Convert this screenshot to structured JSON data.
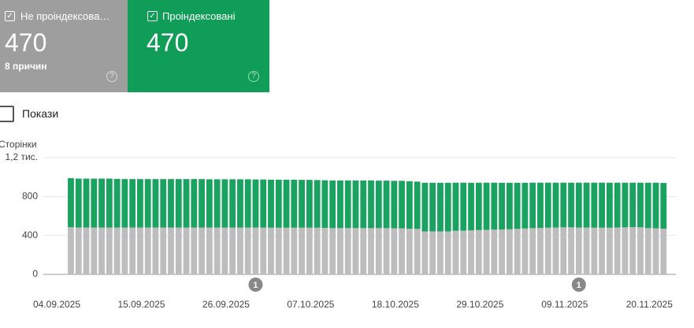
{
  "cards": [
    {
      "label": "Не проіндексова…",
      "value": "470",
      "note": "8 причин"
    },
    {
      "label": "Проіндексовані",
      "value": "470"
    }
  ],
  "toggle": "Покази",
  "chart_data": {
    "type": "stacked-bar",
    "y_label": "Сторінки",
    "categories": [
      "04.09.2025",
      null,
      null,
      null,
      null,
      null,
      null,
      null,
      null,
      null,
      null,
      "15.09.2025",
      null,
      null,
      null,
      null,
      null,
      null,
      null,
      null,
      null,
      null,
      "26.09.2025",
      null,
      null,
      null,
      null,
      null,
      null,
      null,
      null,
      null,
      null,
      "07.10.2025",
      null,
      null,
      null,
      null,
      null,
      null,
      null,
      null,
      null,
      null,
      "18.10.2025",
      null,
      null,
      null,
      null,
      null,
      null,
      null,
      null,
      null,
      null,
      "29.10.2025",
      null,
      null,
      null,
      null,
      null,
      null,
      null,
      null,
      null,
      null,
      "09.11.2025",
      null,
      null,
      null,
      null,
      null,
      null,
      null,
      null,
      null,
      null,
      "20.11.2025"
    ],
    "series": [
      {
        "name": "Не проіндексовані",
        "color": "#bdbdbd",
        "values": [
          485,
          482,
          482,
          482,
          482,
          482,
          482,
          482,
          482,
          482,
          482,
          482,
          482,
          482,
          482,
          482,
          482,
          482,
          482,
          482,
          482,
          482,
          482,
          482,
          482,
          482,
          480,
          480,
          480,
          480,
          480,
          480,
          480,
          478,
          476,
          476,
          476,
          476,
          476,
          476,
          476,
          476,
          474,
          474,
          470,
          468,
          442,
          442,
          442,
          442,
          448,
          450,
          452,
          456,
          458,
          460,
          462,
          464,
          468,
          472,
          476,
          478,
          480,
          482,
          484,
          484,
          482,
          482,
          480,
          480,
          480,
          482,
          484,
          486,
          484,
          476,
          474,
          470
        ]
      },
      {
        "name": "Проіндексовані",
        "color": "#1aa260",
        "values": [
          505,
          503,
          503,
          503,
          503,
          503,
          500,
          498,
          498,
          498,
          498,
          498,
          498,
          498,
          498,
          498,
          498,
          498,
          496,
          496,
          496,
          496,
          496,
          496,
          494,
          494,
          494,
          494,
          494,
          494,
          492,
          492,
          490,
          490,
          490,
          490,
          490,
          490,
          490,
          490,
          488,
          488,
          488,
          488,
          488,
          486,
          500,
          500,
          500,
          500,
          495,
          493,
          490,
          487,
          485,
          483,
          480,
          478,
          474,
          470,
          467,
          465,
          463,
          461,
          459,
          459,
          461,
          461,
          463,
          463,
          463,
          461,
          459,
          457,
          459,
          467,
          469,
          470
        ]
      }
    ],
    "ylim": [
      0,
      1200
    ],
    "yticks": [
      0,
      400,
      800,
      {
        "value": 1200,
        "label": "1,2 тис."
      }
    ],
    "grid": true,
    "annotations": [
      {
        "text": "1",
        "at": 24
      },
      {
        "text": "1",
        "at": 66
      }
    ]
  }
}
